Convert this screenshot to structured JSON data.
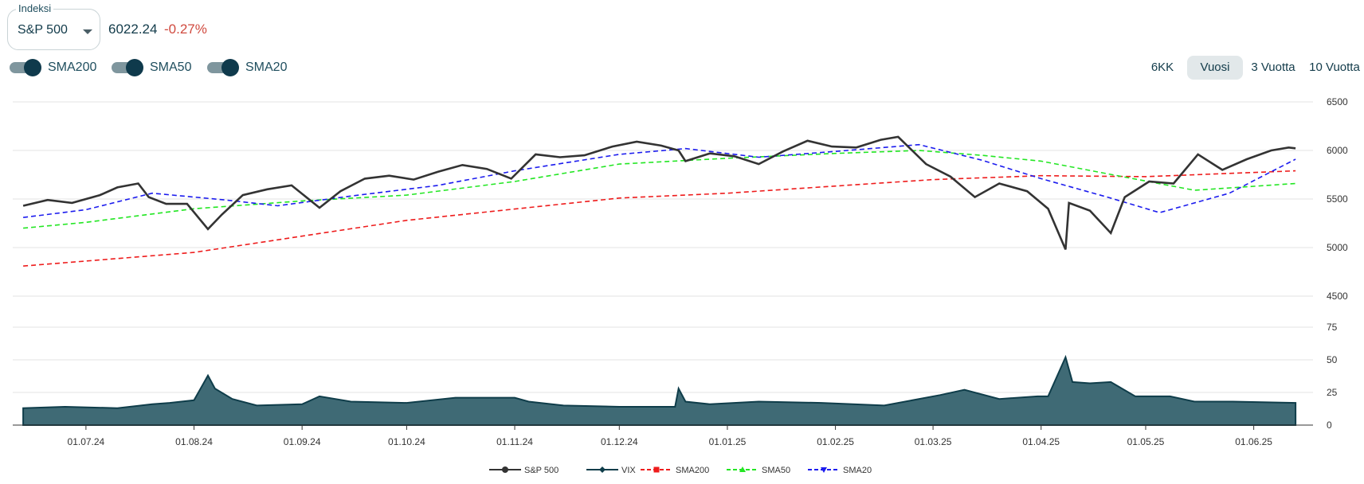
{
  "index_selector": {
    "label": "Indeksi",
    "value": "S&P 500"
  },
  "quote": {
    "price": "6022.24",
    "change": "-0.27%"
  },
  "toggles": [
    {
      "label": "SMA200",
      "on": true
    },
    {
      "label": "SMA50",
      "on": true
    },
    {
      "label": "SMA20",
      "on": true
    }
  ],
  "ranges": [
    {
      "label": "6KK",
      "active": false
    },
    {
      "label": "Vuosi",
      "active": true
    },
    {
      "label": "3 Vuotta",
      "active": false
    },
    {
      "label": "10 Vuotta",
      "active": false
    }
  ],
  "chart_data": {
    "type": "line",
    "x_tick_labels": [
      "01.07.24",
      "01.08.24",
      "01.09.24",
      "01.10.24",
      "01.11.24",
      "01.12.24",
      "01.01.25",
      "01.02.25",
      "01.03.25",
      "01.04.25",
      "01.05.25",
      "01.06.25"
    ],
    "price_panel": {
      "y_ticks": [
        6500,
        6000,
        5500,
        5000,
        4500
      ],
      "ylim": [
        4500,
        6500
      ],
      "series": [
        {
          "name": "S&P 500",
          "color": "#333333",
          "style": "solid",
          "x": [
            "2024-06-13",
            "2024-06-20",
            "2024-06-27",
            "2024-07-05",
            "2024-07-10",
            "2024-07-16",
            "2024-07-19",
            "2024-07-24",
            "2024-07-30",
            "2024-08-05",
            "2024-08-09",
            "2024-08-15",
            "2024-08-22",
            "2024-08-29",
            "2024-09-06",
            "2024-09-12",
            "2024-09-19",
            "2024-09-26",
            "2024-10-03",
            "2024-10-10",
            "2024-10-17",
            "2024-10-24",
            "2024-10-31",
            "2024-11-07",
            "2024-11-14",
            "2024-11-21",
            "2024-11-29",
            "2024-12-06",
            "2024-12-13",
            "2024-12-18",
            "2024-12-20",
            "2024-12-27",
            "2025-01-03",
            "2025-01-10",
            "2025-01-17",
            "2025-01-24",
            "2025-01-31",
            "2025-02-07",
            "2025-02-14",
            "2025-02-19",
            "2025-02-27",
            "2025-03-06",
            "2025-03-13",
            "2025-03-20",
            "2025-03-28",
            "2025-04-03",
            "2025-04-08",
            "2025-04-09",
            "2025-04-15",
            "2025-04-21",
            "2025-04-25",
            "2025-05-02",
            "2025-05-09",
            "2025-05-16",
            "2025-05-23",
            "2025-05-30",
            "2025-06-06",
            "2025-06-11",
            "2025-06-13"
          ],
          "y": [
            5430,
            5490,
            5460,
            5540,
            5620,
            5660,
            5520,
            5450,
            5450,
            5190,
            5340,
            5540,
            5600,
            5640,
            5410,
            5580,
            5710,
            5740,
            5700,
            5780,
            5850,
            5810,
            5710,
            5960,
            5930,
            5950,
            6040,
            6090,
            6050,
            6000,
            5890,
            5970,
            5940,
            5860,
            5990,
            6100,
            6040,
            6030,
            6110,
            6140,
            5860,
            5730,
            5520,
            5660,
            5580,
            5400,
            4980,
            5460,
            5380,
            5150,
            5520,
            5680,
            5660,
            5960,
            5800,
            5910,
            6000,
            6030,
            6022
          ]
        },
        {
          "name": "SMA200",
          "color": "#ee1c1c",
          "style": "dashed",
          "x": [
            "2024-06-13",
            "2024-08-01",
            "2024-10-01",
            "2024-12-01",
            "2025-01-01",
            "2025-03-01",
            "2025-04-01",
            "2025-05-01",
            "2025-06-13"
          ],
          "y": [
            4810,
            4950,
            5280,
            5510,
            5560,
            5700,
            5740,
            5730,
            5790
          ]
        },
        {
          "name": "SMA50",
          "color": "#22e622",
          "style": "dashed",
          "x": [
            "2024-06-13",
            "2024-07-01",
            "2024-08-01",
            "2024-09-01",
            "2024-10-01",
            "2024-11-01",
            "2024-12-01",
            "2025-01-01",
            "2025-02-01",
            "2025-02-25",
            "2025-03-15",
            "2025-04-01",
            "2025-04-20",
            "2025-05-15",
            "2025-06-13"
          ],
          "y": [
            5200,
            5260,
            5400,
            5480,
            5540,
            5680,
            5860,
            5920,
            5970,
            6000,
            5950,
            5890,
            5760,
            5590,
            5660
          ]
        },
        {
          "name": "SMA20",
          "color": "#1c1cee",
          "style": "dashed",
          "x": [
            "2024-06-13",
            "2024-07-01",
            "2024-07-20",
            "2024-08-10",
            "2024-08-25",
            "2024-09-15",
            "2024-10-10",
            "2024-11-01",
            "2024-12-01",
            "2024-12-20",
            "2025-01-10",
            "2025-02-01",
            "2025-02-25",
            "2025-03-15",
            "2025-04-01",
            "2025-04-20",
            "2025-05-05",
            "2025-05-25",
            "2025-06-13"
          ],
          "y": [
            5310,
            5390,
            5560,
            5490,
            5430,
            5530,
            5640,
            5790,
            5960,
            6020,
            5930,
            5990,
            6060,
            5900,
            5710,
            5520,
            5360,
            5560,
            5910
          ]
        }
      ]
    },
    "vix_panel": {
      "y_ticks": [
        75,
        50,
        25,
        0
      ],
      "ylim": [
        0,
        75
      ],
      "series": [
        {
          "name": "VIX",
          "color": "#0f3d4a",
          "fill": "#3f6a75",
          "x": [
            "2024-06-13",
            "2024-06-25",
            "2024-07-10",
            "2024-07-20",
            "2024-07-25",
            "2024-08-01",
            "2024-08-05",
            "2024-08-07",
            "2024-08-12",
            "2024-08-19",
            "2024-09-01",
            "2024-09-06",
            "2024-09-15",
            "2024-10-01",
            "2024-10-15",
            "2024-11-01",
            "2024-11-05",
            "2024-11-15",
            "2024-12-01",
            "2024-12-17",
            "2024-12-18",
            "2024-12-20",
            "2024-12-27",
            "2025-01-10",
            "2025-01-28",
            "2025-02-15",
            "2025-03-03",
            "2025-03-10",
            "2025-03-20",
            "2025-03-31",
            "2025-04-03",
            "2025-04-07",
            "2025-04-08",
            "2025-04-10",
            "2025-04-15",
            "2025-04-21",
            "2025-04-28",
            "2025-05-08",
            "2025-05-15",
            "2025-05-26",
            "2025-06-13"
          ],
          "y": [
            13,
            14,
            13,
            16,
            17,
            19,
            38,
            28,
            20,
            15,
            16,
            22,
            18,
            17,
            21,
            21,
            18,
            15,
            14,
            14,
            28,
            18,
            16,
            18,
            17,
            15,
            23,
            27,
            20,
            22,
            22,
            46,
            52,
            33,
            32,
            33,
            22,
            22,
            18,
            18,
            17
          ]
        }
      ]
    },
    "legend": [
      "S&P 500",
      "VIX",
      "SMA200",
      "SMA50",
      "SMA20"
    ],
    "legend_position": "bottom",
    "grid": true
  }
}
